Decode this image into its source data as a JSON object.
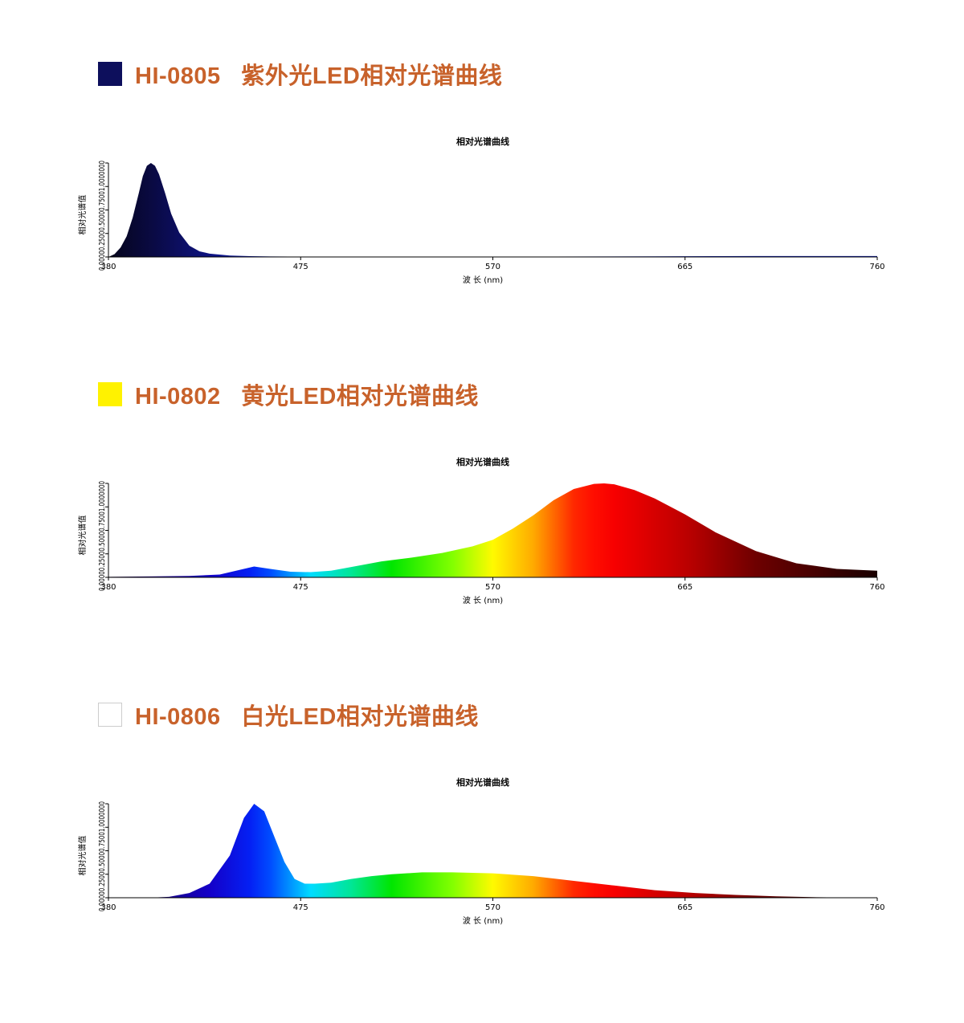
{
  "sections": [
    {
      "heading": "HI-0805   紫外光LED相对光谱曲线",
      "swatch_color": "#0d0f5c",
      "swatch_border": "#0d0f5c"
    },
    {
      "heading": "HI-0802   黄光LED相对光谱曲线",
      "swatch_color": "#fff200",
      "swatch_border": "#fff200"
    },
    {
      "heading": "HI-0806   白光LED相对光谱曲线",
      "swatch_color": "#ffffff",
      "swatch_border": "#cccccc"
    }
  ],
  "chart_data": [
    {
      "type": "area",
      "title": "相对光谱曲线",
      "xlabel": "波 长 (nm)",
      "ylabel": "相对光谱值",
      "xlim": [
        380,
        760
      ],
      "ylim": [
        0,
        1
      ],
      "xticks": [
        380,
        475,
        570,
        665,
        760
      ],
      "xtick_labels": [
        "380",
        "475",
        "570",
        "665",
        "760"
      ],
      "yticks": [
        0,
        0.25,
        0.5,
        0.75,
        1
      ],
      "ytick_labels": [
        "0.0000",
        "0.2500",
        "0.5000",
        "0.7500",
        "1.0000000"
      ],
      "fill": "monochrome-dark-blue",
      "x": [
        380,
        383,
        386,
        389,
        392,
        395,
        397,
        399,
        401,
        403,
        405,
        408,
        411,
        415,
        420,
        425,
        430,
        440,
        450,
        460,
        480,
        500,
        550,
        600,
        650,
        700,
        760
      ],
      "y": [
        0.0,
        0.03,
        0.1,
        0.22,
        0.42,
        0.68,
        0.86,
        0.97,
        1.0,
        0.97,
        0.88,
        0.68,
        0.46,
        0.26,
        0.12,
        0.06,
        0.035,
        0.015,
        0.008,
        0.005,
        0.003,
        0.004,
        0.004,
        0.004,
        0.006,
        0.01,
        0.01
      ]
    },
    {
      "type": "area",
      "title": "相对光谱曲线",
      "xlabel": "波 长 (nm)",
      "ylabel": "相对光谱值",
      "xlim": [
        380,
        760
      ],
      "ylim": [
        0,
        1
      ],
      "xticks": [
        380,
        475,
        570,
        665,
        760
      ],
      "xtick_labels": [
        "380",
        "475",
        "570",
        "665",
        "760"
      ],
      "yticks": [
        0,
        0.25,
        0.5,
        0.75,
        1
      ],
      "ytick_labels": [
        "0.0000",
        "0.2500",
        "0.5000",
        "0.7500",
        "1.0000000"
      ],
      "fill": "spectrum",
      "x": [
        380,
        400,
        420,
        435,
        445,
        452,
        460,
        470,
        480,
        490,
        500,
        515,
        530,
        545,
        560,
        570,
        580,
        590,
        600,
        610,
        620,
        625,
        630,
        640,
        650,
        665,
        680,
        700,
        720,
        740,
        760
      ],
      "y": [
        0.005,
        0.01,
        0.015,
        0.03,
        0.08,
        0.115,
        0.09,
        0.06,
        0.055,
        0.07,
        0.11,
        0.17,
        0.21,
        0.26,
        0.33,
        0.4,
        0.52,
        0.66,
        0.82,
        0.94,
        0.995,
        1.0,
        0.99,
        0.93,
        0.84,
        0.67,
        0.48,
        0.28,
        0.15,
        0.09,
        0.07
      ]
    },
    {
      "type": "area",
      "title": "相对光谱曲线",
      "xlabel": "波 长 (nm)",
      "ylabel": "相对光谱值",
      "xlim": [
        380,
        760
      ],
      "ylim": [
        0,
        1
      ],
      "xticks": [
        380,
        475,
        570,
        665,
        760
      ],
      "xtick_labels": [
        "380",
        "475",
        "570",
        "665",
        "760"
      ],
      "yticks": [
        0,
        0.25,
        0.5,
        0.75,
        1
      ],
      "ytick_labels": [
        "0.0000",
        "0.2500",
        "0.5000",
        "0.7500",
        "1.0000000"
      ],
      "fill": "spectrum",
      "x": [
        400,
        410,
        420,
        430,
        440,
        447,
        452,
        457,
        462,
        467,
        472,
        477,
        482,
        490,
        500,
        510,
        520,
        535,
        550,
        570,
        590,
        610,
        630,
        650,
        670,
        690,
        710,
        730,
        756
      ],
      "y": [
        0.0,
        0.01,
        0.05,
        0.15,
        0.45,
        0.85,
        1.0,
        0.92,
        0.65,
        0.38,
        0.2,
        0.15,
        0.15,
        0.16,
        0.2,
        0.23,
        0.25,
        0.27,
        0.27,
        0.26,
        0.23,
        0.18,
        0.13,
        0.08,
        0.05,
        0.03,
        0.015,
        0.005,
        0.0
      ]
    }
  ]
}
